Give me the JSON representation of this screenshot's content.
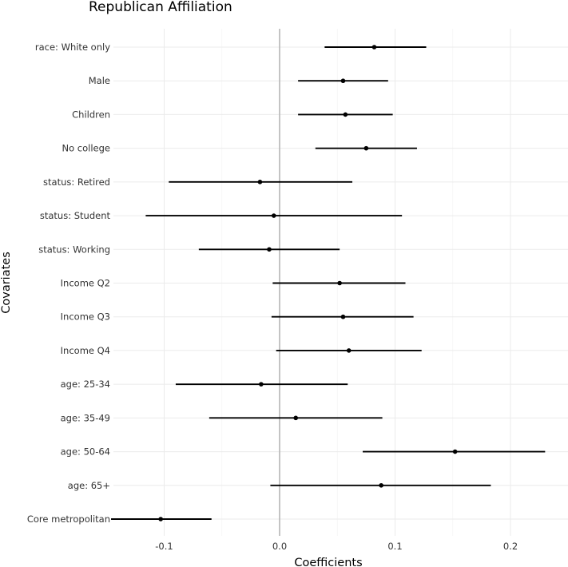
{
  "chart_data": {
    "type": "coefficient_plot",
    "title": "Republican Affiliation",
    "xlabel": "Coefficients",
    "ylabel": "Covariates",
    "xlim": [
      -0.15,
      0.235
    ],
    "x_ticks": [
      -0.1,
      0.0,
      0.1,
      0.2
    ],
    "x_tick_labels": [
      "-0.1",
      "0.0",
      "0.1",
      "0.2"
    ],
    "reference_line": 0,
    "grid": true,
    "categories": [
      "race: White only",
      "Male",
      "Children",
      "No college",
      "status: Retired",
      "status: Student",
      "status: Working",
      "Income Q2",
      "Income Q3",
      "Income Q4",
      "age: 25-34",
      "age: 35-49",
      "age: 50-64",
      "age: 65+",
      "Core metropolitan"
    ],
    "estimates": [
      0.082,
      0.055,
      0.057,
      0.075,
      -0.017,
      -0.005,
      -0.009,
      0.052,
      0.055,
      0.06,
      -0.016,
      0.014,
      0.152,
      0.088,
      -0.103
    ],
    "ci_low": [
      0.039,
      0.016,
      0.016,
      0.031,
      -0.096,
      -0.116,
      -0.07,
      -0.006,
      -0.007,
      -0.003,
      -0.09,
      -0.061,
      0.072,
      -0.008,
      -0.146
    ],
    "ci_high": [
      0.127,
      0.094,
      0.098,
      0.119,
      0.063,
      0.106,
      0.052,
      0.109,
      0.116,
      0.123,
      0.059,
      0.089,
      0.23,
      0.183,
      -0.059
    ]
  }
}
